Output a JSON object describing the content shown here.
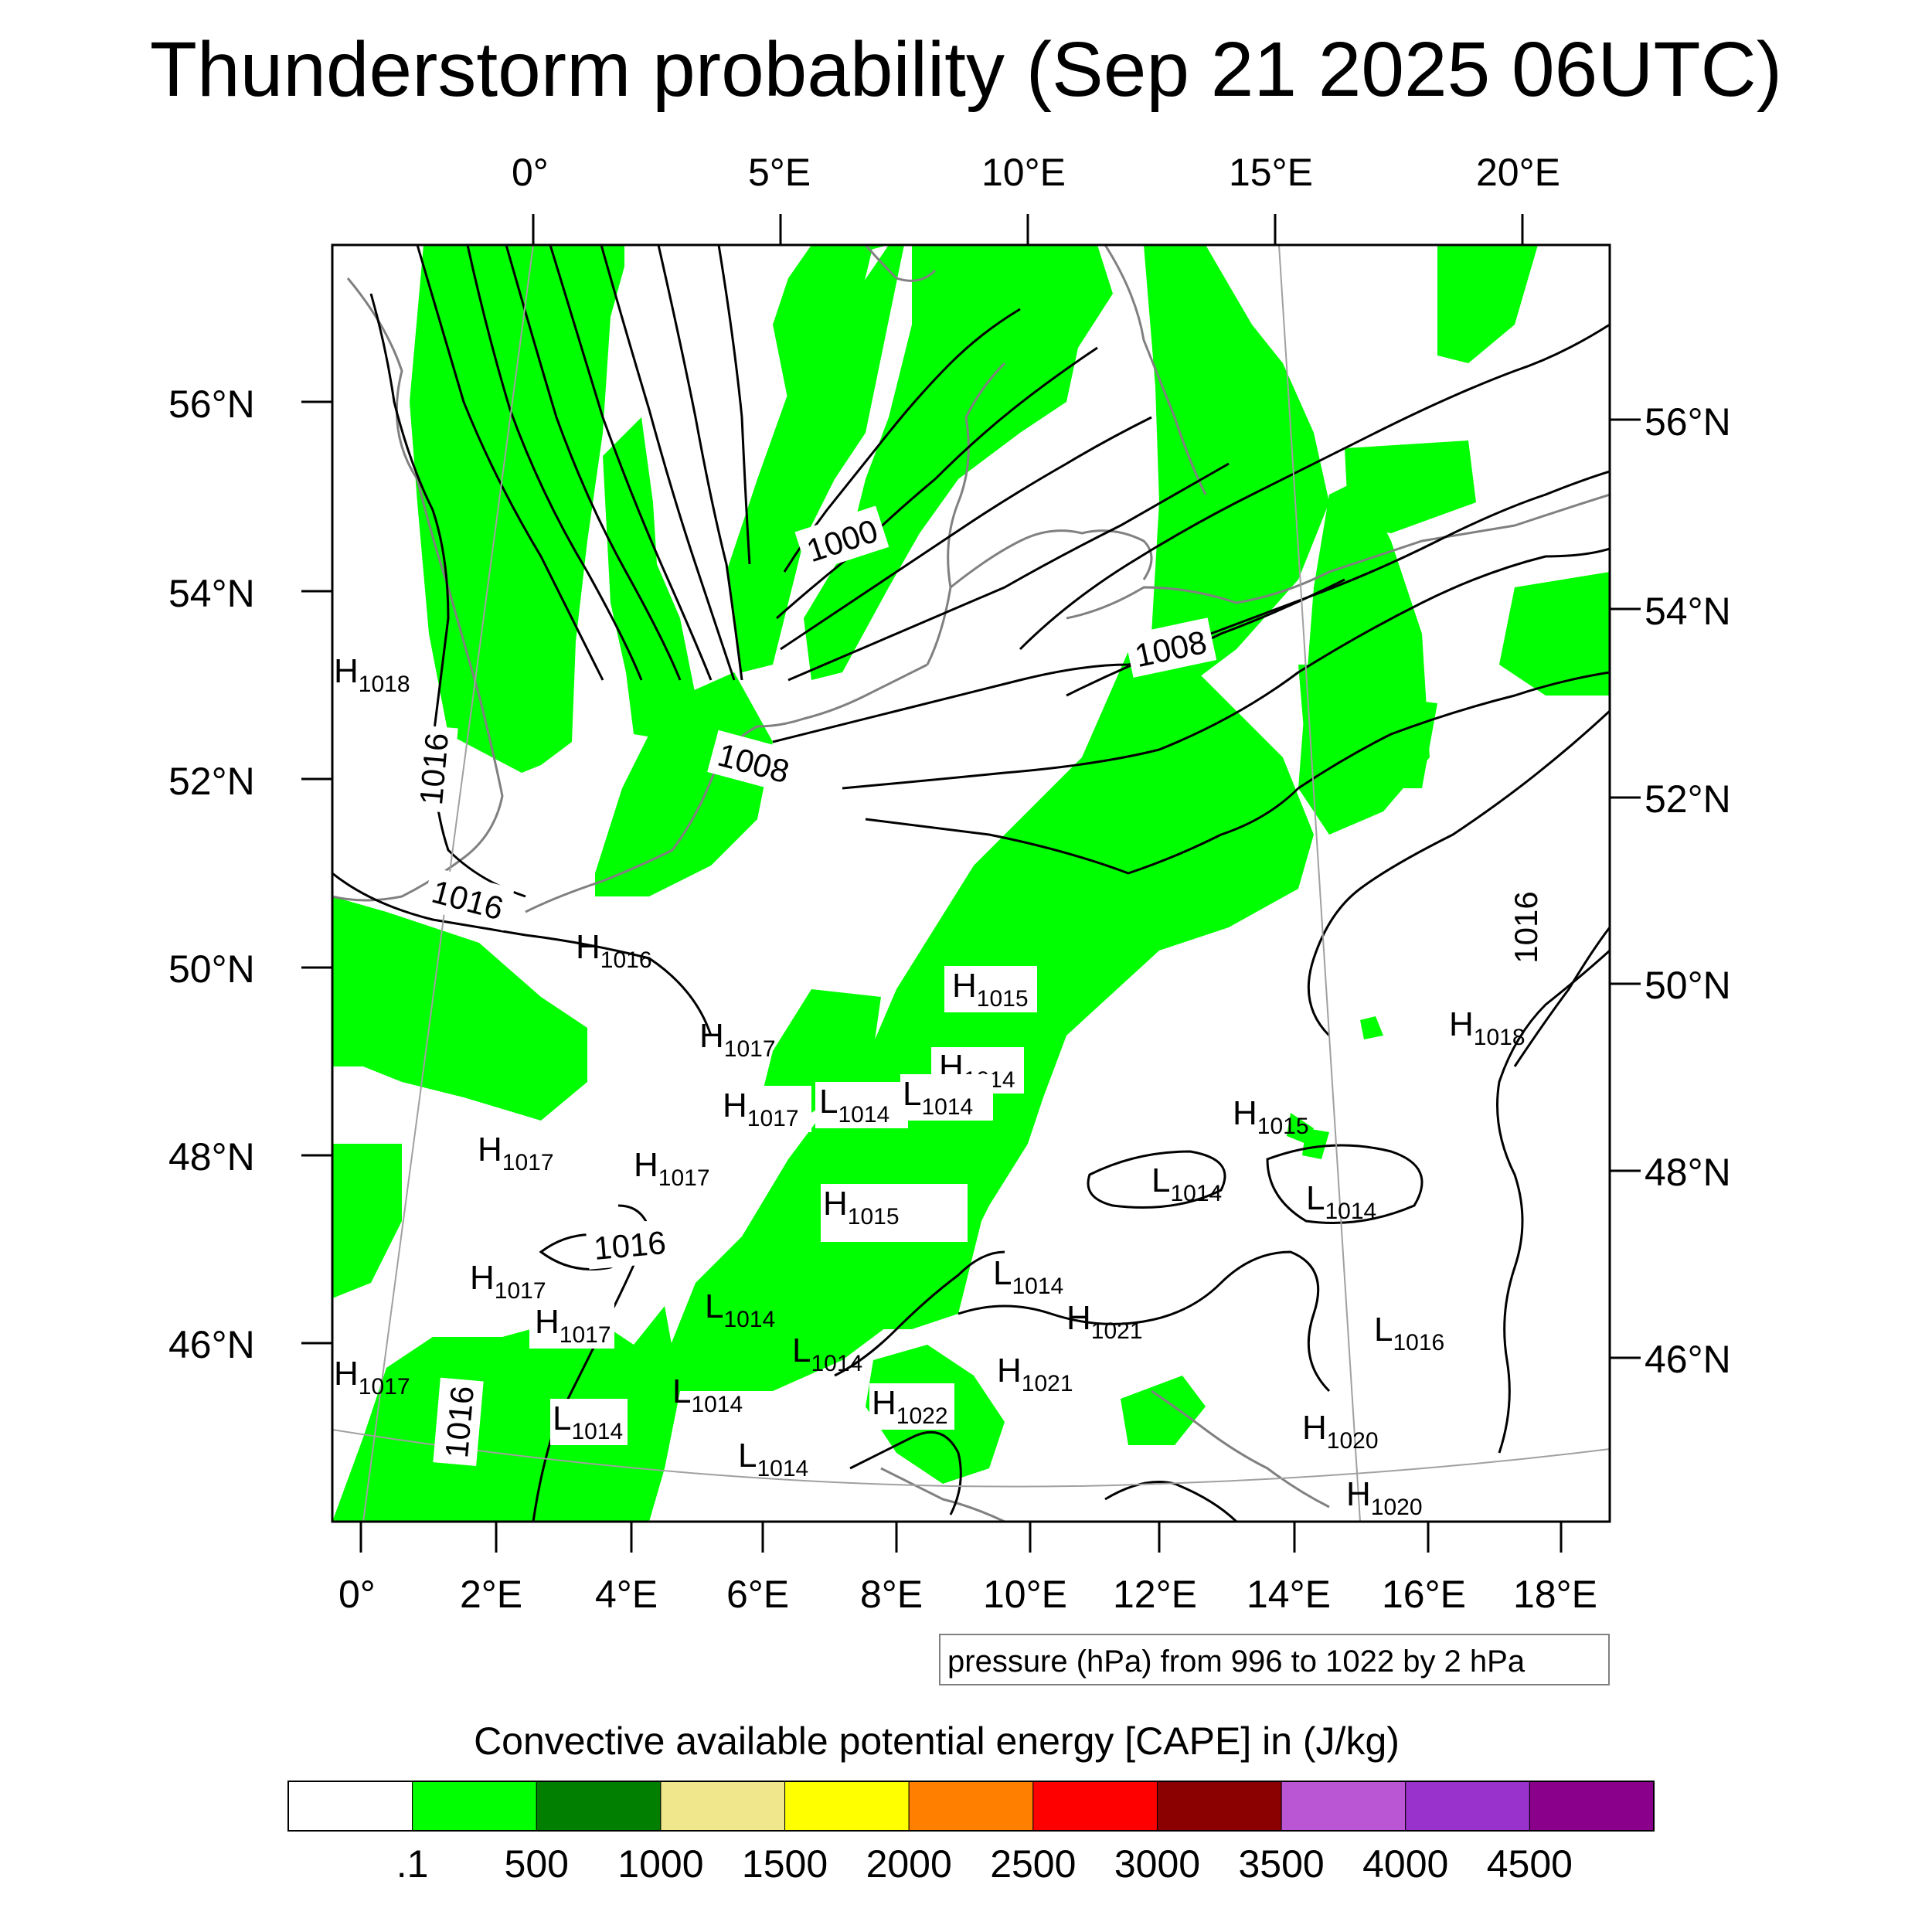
{
  "title": "Thunderstorm probability (Sep 21 2025 06UTC)",
  "top_lon_labels": [
    "0°",
    "5°E",
    "10°E",
    "15°E",
    "20°E"
  ],
  "bottom_lon_labels": [
    "0°",
    "2°E",
    "4°E",
    "6°E",
    "8°E",
    "10°E",
    "12°E",
    "14°E",
    "16°E",
    "18°E"
  ],
  "left_lat_labels": [
    "56°N",
    "54°N",
    "52°N",
    "50°N",
    "48°N",
    "46°N"
  ],
  "right_lat_labels": [
    "56°N",
    "54°N",
    "52°N",
    "50°N",
    "48°N",
    "46°N"
  ],
  "isobar_note": "pressure (hPa) from 996 to 1022 by 2 hPa",
  "colorbar": {
    "title": "Convective available potential energy [CAPE] in (J/kg)",
    "colors": [
      "#ffffff",
      "#00ff00",
      "#007f00",
      "#f0e68c",
      "#ffff00",
      "#ff8000",
      "#ff0000",
      "#8b0000",
      "#ba55d3",
      "#9932cc",
      "#8b008b"
    ],
    "labels": [
      ".1",
      "500",
      "1000",
      "1500",
      "2000",
      "2500",
      "3000",
      "3500",
      "4000",
      "4500"
    ]
  },
  "map_colors": {
    "cape_low": "#00ff00",
    "coast": "#808080",
    "isobar": "#000000"
  },
  "contour_labels": [
    "1000",
    "1008",
    "1008",
    "1016",
    "1016",
    "1016",
    "1016",
    "1016"
  ],
  "pressure_centers": [
    {
      "type": "H",
      "value": "1018"
    },
    {
      "type": "H",
      "value": "1016"
    },
    {
      "type": "H",
      "value": "1015"
    },
    {
      "type": "H",
      "value": "1017"
    },
    {
      "type": "H",
      "value": "1014"
    },
    {
      "type": "L",
      "value": "1014"
    },
    {
      "type": "L",
      "value": "1014"
    },
    {
      "type": "H",
      "value": "1017"
    },
    {
      "type": "H",
      "value": "1017"
    },
    {
      "type": "H",
      "value": "1017"
    },
    {
      "type": "H",
      "value": "1015"
    },
    {
      "type": "H",
      "value": "1015"
    },
    {
      "type": "L",
      "value": "1014"
    },
    {
      "type": "L",
      "value": "1014"
    },
    {
      "type": "H",
      "value": "1018"
    },
    {
      "type": "L",
      "value": "1014"
    },
    {
      "type": "H",
      "value": "1017"
    },
    {
      "type": "H",
      "value": "1017"
    },
    {
      "type": "L",
      "value": "1014"
    },
    {
      "type": "H",
      "value": "1021"
    },
    {
      "type": "L",
      "value": "1014"
    },
    {
      "type": "L",
      "value": "1016"
    },
    {
      "type": "H",
      "value": "1021"
    },
    {
      "type": "H",
      "value": "1017"
    },
    {
      "type": "L",
      "value": "1014"
    },
    {
      "type": "L",
      "value": "1014"
    },
    {
      "type": "H",
      "value": "1022"
    },
    {
      "type": "L",
      "value": "1014"
    },
    {
      "type": "H",
      "value": "1020"
    },
    {
      "type": "H",
      "value": "1020"
    }
  ]
}
